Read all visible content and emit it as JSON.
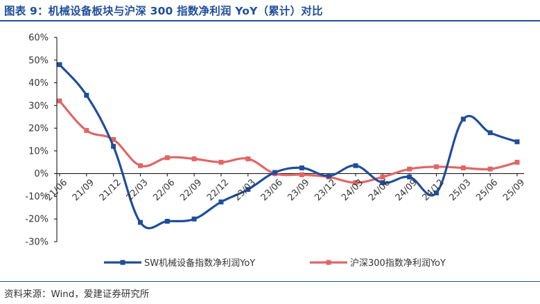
{
  "title": "图表 9：机械设备板块与沪深 300 指数净利润 YoY（累计）对比",
  "source": "资料来源：Wind，爱建证券研究所",
  "colors": {
    "sw": "#1f4e9a",
    "hs300": "#e06666",
    "title": "#1f4e9a"
  },
  "chart_data": {
    "type": "line",
    "categories": [
      "21/06",
      "21/09",
      "21/12",
      "22/03",
      "22/06",
      "22/09",
      "22/12",
      "23/03",
      "23/06",
      "23/09",
      "23/12",
      "24/03",
      "24/06",
      "24/09",
      "24/12",
      "25/03",
      "25/06",
      "25/09"
    ],
    "yticks": [
      "60%",
      "50%",
      "40%",
      "30%",
      "20%",
      "10%",
      "0%",
      "-10%",
      "-20%",
      "-30%"
    ],
    "ylim": [
      -30,
      60
    ],
    "ylabel": "",
    "xlabel": "",
    "grid": false,
    "legend_position": "bottom",
    "series": [
      {
        "name": "SW机械设备指数净利润YoY",
        "color": "#1f4e9a",
        "values": [
          48,
          34.5,
          12,
          -21.5,
          -21,
          -20,
          -12.5,
          -7,
          0.5,
          2.5,
          -1,
          3.5,
          -4,
          -1.5,
          -8.5,
          24,
          18,
          14
        ]
      },
      {
        "name": "沪深300指数净利润YoY",
        "color": "#e06666",
        "values": [
          32,
          19,
          15,
          3.5,
          7,
          6.5,
          5,
          6.5,
          0,
          -0.5,
          -1.5,
          -4,
          -1.5,
          2,
          3,
          2.5,
          2,
          5
        ]
      }
    ]
  }
}
